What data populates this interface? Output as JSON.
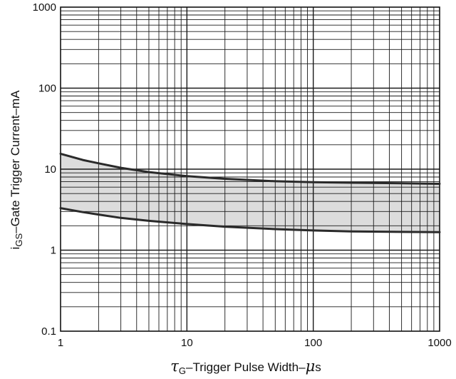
{
  "chart_data": {
    "type": "line",
    "title": "",
    "xlabel": {
      "symbol": "τ",
      "sub": "G",
      "text": "–Trigger Pulse Width–",
      "unit_symbol": "μ",
      "unit": "s"
    },
    "ylabel": {
      "prefix": "i",
      "sub": "GS",
      "text": "–Gate Trigger Current–mA"
    },
    "x_scale": "log",
    "y_scale": "log",
    "xlim": [
      1,
      1000
    ],
    "ylim": [
      0.1,
      1000
    ],
    "x_ticks": [
      "1",
      "10",
      "100",
      "1000"
    ],
    "y_ticks": [
      "0.1",
      "1",
      "10",
      "100",
      "1000"
    ],
    "grid": true,
    "legend": "none",
    "shaded_band": "between curves",
    "series": [
      {
        "name": "",
        "x": [
          1,
          1.5,
          2,
          3,
          5,
          10,
          20,
          50,
          100,
          200,
          500,
          1000
        ],
        "y": [
          15.5,
          13.0,
          11.8,
          10.4,
          9.2,
          8.2,
          7.6,
          7.1,
          6.9,
          6.8,
          6.7,
          6.6
        ]
      },
      {
        "name": "",
        "x": [
          1,
          1.5,
          2,
          3,
          5,
          10,
          20,
          50,
          100,
          200,
          500,
          1000
        ],
        "y": [
          3.3,
          2.95,
          2.75,
          2.5,
          2.3,
          2.1,
          1.95,
          1.82,
          1.75,
          1.7,
          1.68,
          1.67
        ]
      }
    ],
    "colors": {
      "line": "#2a2a2a",
      "grid": "#1a1a1a",
      "band": "#dcdcdc"
    }
  }
}
